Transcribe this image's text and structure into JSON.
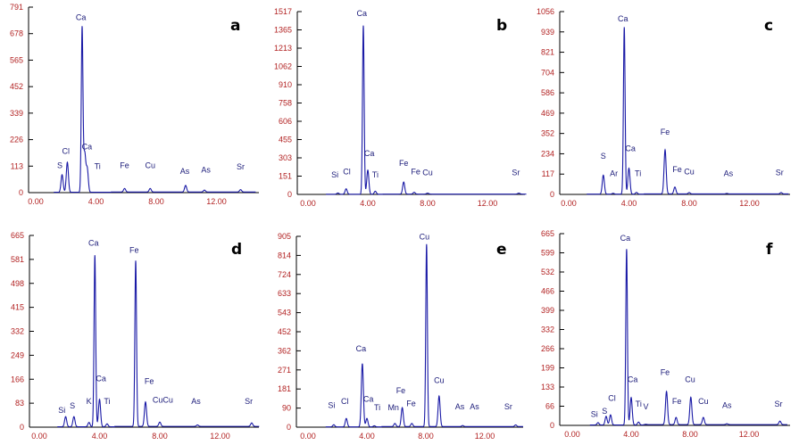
{
  "chart_data": [
    {
      "id": "a",
      "type": "line",
      "title": "a",
      "xlabel": "",
      "ylabel": "",
      "xlim": [
        0,
        14.6
      ],
      "xticks": [
        "0.00",
        "4.00",
        "8.00",
        "12.00"
      ],
      "ylim": [
        0,
        791
      ],
      "yticks": [
        "0",
        "113",
        "226",
        "339",
        "452",
        "565",
        "678",
        "791"
      ],
      "peaks": [
        {
          "label": "S",
          "x": 1.75,
          "y": 75
        },
        {
          "label": "Cl",
          "x": 2.1,
          "y": 128
        },
        {
          "label": "Ca",
          "x": 3.08,
          "y": 700
        },
        {
          "label": "Ca",
          "x": 3.25,
          "y": 165
        },
        {
          "label": "Ti",
          "x": 3.42,
          "y": 100
        },
        {
          "label": "Fe",
          "x": 5.9,
          "y": 15
        },
        {
          "label": "Cu",
          "x": 7.6,
          "y": 15
        },
        {
          "label": "As",
          "x": 9.95,
          "y": 28
        },
        {
          "label": "As",
          "x": 11.2,
          "y": 8
        },
        {
          "label": "Sr",
          "x": 13.6,
          "y": 10
        }
      ],
      "annotations": [
        {
          "text": "Ca",
          "x": 3.0,
          "y": 735
        },
        {
          "text": "Cl",
          "x": 2.0,
          "y": 165
        },
        {
          "text": "Ca",
          "x": 3.4,
          "y": 185
        },
        {
          "text": "S",
          "x": 1.6,
          "y": 105
        },
        {
          "text": "Ti",
          "x": 4.1,
          "y": 100
        },
        {
          "text": "Fe",
          "x": 5.9,
          "y": 105
        },
        {
          "text": "Cu",
          "x": 7.6,
          "y": 105
        },
        {
          "text": "As",
          "x": 9.9,
          "y": 80
        },
        {
          "text": "As",
          "x": 11.3,
          "y": 85
        },
        {
          "text": "Sr",
          "x": 13.6,
          "y": 98
        }
      ]
    },
    {
      "id": "b",
      "type": "line",
      "title": "b",
      "xlabel": "",
      "ylabel": "",
      "xlim": [
        0,
        14.6
      ],
      "xticks": [
        "0.00",
        "4.00",
        "8.00",
        "12.00"
      ],
      "ylim": [
        0,
        1517
      ],
      "yticks": [
        "0",
        "151",
        "303",
        "455",
        "606",
        "758",
        "910",
        "1062",
        "1213",
        "1365",
        "1517"
      ],
      "peaks": [
        {
          "label": "Si",
          "x": 2.0,
          "y": 10
        },
        {
          "label": "Cl",
          "x": 2.55,
          "y": 45
        },
        {
          "label": "Ca",
          "x": 3.7,
          "y": 1400
        },
        {
          "label": "Ca",
          "x": 4.0,
          "y": 200
        },
        {
          "label": "Ti",
          "x": 4.5,
          "y": 25
        },
        {
          "label": "Fe",
          "x": 6.4,
          "y": 100
        },
        {
          "label": "Fe",
          "x": 7.1,
          "y": 15
        },
        {
          "label": "Cu",
          "x": 8.0,
          "y": 8
        },
        {
          "label": "Sr",
          "x": 14.1,
          "y": 8
        }
      ],
      "annotations": [
        {
          "text": "Ca",
          "x": 3.6,
          "y": 1480
        },
        {
          "text": "Ca",
          "x": 4.1,
          "y": 320
        },
        {
          "text": "Si",
          "x": 1.8,
          "y": 140
        },
        {
          "text": "Cl",
          "x": 2.6,
          "y": 165
        },
        {
          "text": "Ti",
          "x": 4.5,
          "y": 140
        },
        {
          "text": "Fe",
          "x": 6.4,
          "y": 235
        },
        {
          "text": "Fe",
          "x": 7.2,
          "y": 165
        },
        {
          "text": "Cu",
          "x": 8.0,
          "y": 160
        },
        {
          "text": "Sr",
          "x": 13.9,
          "y": 160
        }
      ]
    },
    {
      "id": "c",
      "type": "line",
      "title": "c",
      "xlabel": "",
      "ylabel": "",
      "xlim": [
        0,
        14.6
      ],
      "xticks": [
        "0.00",
        "4.00",
        "8.00",
        "12.00"
      ],
      "ylim": [
        0,
        1056
      ],
      "yticks": [
        "0",
        "117",
        "234",
        "352",
        "469",
        "586",
        "704",
        "821",
        "939",
        "1056"
      ],
      "peaks": [
        {
          "label": "S",
          "x": 2.3,
          "y": 110
        },
        {
          "label": "Ar",
          "x": 2.95,
          "y": 5
        },
        {
          "label": "Ca",
          "x": 3.69,
          "y": 965
        },
        {
          "label": "Ca",
          "x": 4.0,
          "y": 150
        },
        {
          "label": "Ti",
          "x": 4.5,
          "y": 10
        },
        {
          "label": "Fe",
          "x": 6.4,
          "y": 255
        },
        {
          "label": "Fe",
          "x": 7.05,
          "y": 40
        },
        {
          "label": "Cu",
          "x": 8.0,
          "y": 8
        },
        {
          "label": "As",
          "x": 10.5,
          "y": 3
        },
        {
          "label": "Sr",
          "x": 14.1,
          "y": 8
        }
      ],
      "annotations": [
        {
          "text": "Ca",
          "x": 3.6,
          "y": 1000
        },
        {
          "text": "S",
          "x": 2.3,
          "y": 205
        },
        {
          "text": "Ar",
          "x": 3.0,
          "y": 105
        },
        {
          "text": "Ca",
          "x": 4.1,
          "y": 250
        },
        {
          "text": "Ti",
          "x": 4.6,
          "y": 105
        },
        {
          "text": "Fe",
          "x": 6.4,
          "y": 345
        },
        {
          "text": "Fe",
          "x": 7.2,
          "y": 130
        },
        {
          "text": "Cu",
          "x": 8.0,
          "y": 115
        },
        {
          "text": "As",
          "x": 10.6,
          "y": 105
        },
        {
          "text": "Sr",
          "x": 14.0,
          "y": 110
        }
      ]
    },
    {
      "id": "d",
      "type": "line",
      "title": "d",
      "xlabel": "",
      "ylabel": "",
      "xlim": [
        0,
        14.6
      ],
      "xticks": [
        "0.00",
        "4.00",
        "8.00",
        "12.00"
      ],
      "ylim": [
        0,
        665
      ],
      "yticks": [
        "0",
        "83",
        "166",
        "249",
        "332",
        "415",
        "498",
        "581",
        "665"
      ],
      "peaks": [
        {
          "label": "Si",
          "x": 1.75,
          "y": 35
        },
        {
          "label": "S",
          "x": 2.3,
          "y": 35
        },
        {
          "label": "K",
          "x": 3.3,
          "y": 15
        },
        {
          "label": "Ca",
          "x": 3.69,
          "y": 595
        },
        {
          "label": "Ca",
          "x": 4.0,
          "y": 95
        },
        {
          "label": "Ti",
          "x": 4.5,
          "y": 10
        },
        {
          "label": "Fe",
          "x": 6.4,
          "y": 575
        },
        {
          "label": "Fe",
          "x": 7.05,
          "y": 85
        },
        {
          "label": "Cu",
          "x": 8.0,
          "y": 15
        },
        {
          "label": "As",
          "x": 10.5,
          "y": 5
        },
        {
          "label": "Sr",
          "x": 14.1,
          "y": 12
        }
      ],
      "annotations": [
        {
          "text": "Ca",
          "x": 3.6,
          "y": 630
        },
        {
          "text": "Fe",
          "x": 6.3,
          "y": 605
        },
        {
          "text": "Ca",
          "x": 4.1,
          "y": 160
        },
        {
          "text": "Fe",
          "x": 7.3,
          "y": 150
        },
        {
          "text": "Si",
          "x": 1.5,
          "y": 50
        },
        {
          "text": "S",
          "x": 2.2,
          "y": 65
        },
        {
          "text": "K",
          "x": 3.3,
          "y": 80
        },
        {
          "text": "Ti",
          "x": 4.5,
          "y": 80
        },
        {
          "text": "CuCu",
          "x": 8.2,
          "y": 85
        },
        {
          "text": "As",
          "x": 10.4,
          "y": 80
        },
        {
          "text": "Sr",
          "x": 13.9,
          "y": 80
        }
      ]
    },
    {
      "id": "e",
      "type": "line",
      "title": "e",
      "xlabel": "",
      "ylabel": "",
      "xlim": [
        0,
        14.6
      ],
      "xticks": [
        "0.00",
        "4.00",
        "8.00",
        "12.00"
      ],
      "ylim": [
        0,
        905
      ],
      "yticks": [
        "0",
        "90",
        "181",
        "271",
        "362",
        "452",
        "543",
        "633",
        "724",
        "814",
        "905"
      ],
      "peaks": [
        {
          "label": "Si",
          "x": 1.75,
          "y": 10
        },
        {
          "label": "Cl",
          "x": 2.6,
          "y": 40
        },
        {
          "label": "Ca",
          "x": 3.69,
          "y": 300
        },
        {
          "label": "Ca",
          "x": 4.0,
          "y": 40
        },
        {
          "label": "Ti",
          "x": 4.5,
          "y": 5
        },
        {
          "label": "Mn",
          "x": 5.9,
          "y": 15
        },
        {
          "label": "Fe",
          "x": 6.4,
          "y": 90
        },
        {
          "label": "Fe",
          "x": 7.05,
          "y": 15
        },
        {
          "label": "Cu",
          "x": 8.05,
          "y": 865
        },
        {
          "label": "Cu",
          "x": 8.9,
          "y": 145
        },
        {
          "label": "As",
          "x": 10.5,
          "y": 5
        },
        {
          "label": "Sr",
          "x": 14.1,
          "y": 8
        }
      ],
      "annotations": [
        {
          "text": "Cu",
          "x": 7.9,
          "y": 890
        },
        {
          "text": "Ca",
          "x": 3.6,
          "y": 360
        },
        {
          "text": "Cu",
          "x": 8.9,
          "y": 210
        },
        {
          "text": "Fe",
          "x": 6.3,
          "y": 160
        },
        {
          "text": "Si",
          "x": 1.6,
          "y": 90
        },
        {
          "text": "Cl",
          "x": 2.5,
          "y": 110
        },
        {
          "text": "Ca",
          "x": 4.1,
          "y": 120
        },
        {
          "text": "Ti",
          "x": 4.7,
          "y": 80
        },
        {
          "text": "Mn",
          "x": 5.8,
          "y": 80
        },
        {
          "text": "Fe",
          "x": 7.0,
          "y": 100
        },
        {
          "text": "As",
          "x": 10.3,
          "y": 85
        },
        {
          "text": "As",
          "x": 11.3,
          "y": 85
        },
        {
          "text": "Sr",
          "x": 13.6,
          "y": 85
        }
      ]
    },
    {
      "id": "f",
      "type": "line",
      "title": "f",
      "xlabel": "",
      "ylabel": "",
      "xlim": [
        0,
        14.6
      ],
      "xticks": [
        "0.00",
        "4.00",
        "8.00",
        "12.00"
      ],
      "ylim": [
        0,
        665
      ],
      "yticks": [
        "0",
        "66",
        "133",
        "199",
        "266",
        "332",
        "399",
        "466",
        "532",
        "599",
        "665"
      ],
      "peaks": [
        {
          "label": "Si",
          "x": 1.75,
          "y": 8
        },
        {
          "label": "S",
          "x": 2.3,
          "y": 30
        },
        {
          "label": "Cl",
          "x": 2.6,
          "y": 35
        },
        {
          "label": "Ca",
          "x": 3.69,
          "y": 610
        },
        {
          "label": "Ca",
          "x": 4.0,
          "y": 95
        },
        {
          "label": "Ti",
          "x": 4.5,
          "y": 10
        },
        {
          "label": "V",
          "x": 4.95,
          "y": 2
        },
        {
          "label": "Fe",
          "x": 6.4,
          "y": 115
        },
        {
          "label": "Fe",
          "x": 7.05,
          "y": 25
        },
        {
          "label": "Cu",
          "x": 8.05,
          "y": 95
        },
        {
          "label": "Cu",
          "x": 8.9,
          "y": 25
        },
        {
          "label": "As",
          "x": 10.5,
          "y": 3
        },
        {
          "label": "Sr",
          "x": 14.1,
          "y": 12
        }
      ],
      "annotations": [
        {
          "text": "Ca",
          "x": 3.6,
          "y": 640
        },
        {
          "text": "Ca",
          "x": 4.1,
          "y": 150
        },
        {
          "text": "Fe",
          "x": 6.3,
          "y": 175
        },
        {
          "text": "Cu",
          "x": 8.0,
          "y": 150
        },
        {
          "text": "Cl",
          "x": 2.7,
          "y": 85
        },
        {
          "text": "Si",
          "x": 1.5,
          "y": 30
        },
        {
          "text": "S",
          "x": 2.2,
          "y": 40
        },
        {
          "text": "Ti",
          "x": 4.5,
          "y": 65
        },
        {
          "text": "V",
          "x": 5.0,
          "y": 55
        },
        {
          "text": "Fe",
          "x": 7.1,
          "y": 75
        },
        {
          "text": "Cu",
          "x": 8.9,
          "y": 75
        },
        {
          "text": "As",
          "x": 10.5,
          "y": 60
        },
        {
          "text": "Sr",
          "x": 14.0,
          "y": 65
        }
      ]
    }
  ],
  "panels": [
    {
      "letter": "a"
    },
    {
      "letter": "b"
    },
    {
      "letter": "c"
    },
    {
      "letter": "d"
    },
    {
      "letter": "e"
    },
    {
      "letter": "f"
    }
  ]
}
